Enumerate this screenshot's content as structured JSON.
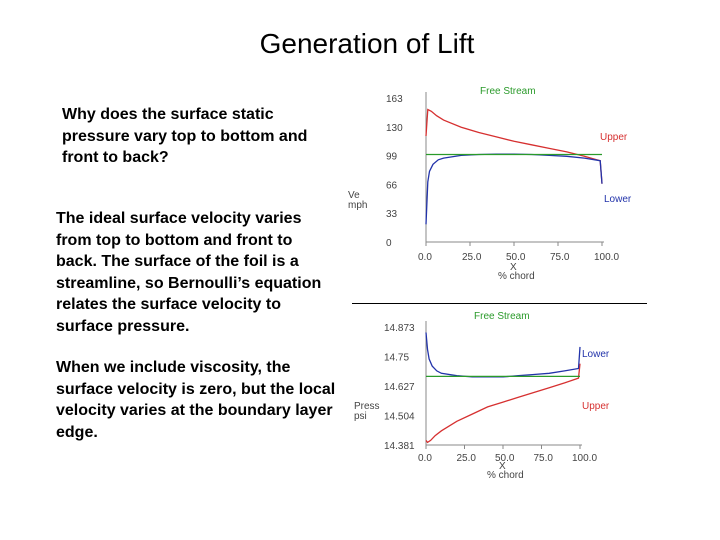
{
  "title": "Generation of  Lift",
  "paragraphs": {
    "p1": "Why does the surface static pressure vary top to bottom and front to back?",
    "p2": "The ideal surface velocity varies from top to bottom and front to back. The surface of the foil is a streamline, so Bernoulli’s equation relates the surface velocity to surface pressure.",
    "p3": "When we include viscosity, the surface velocity is zero, but the local velocity varies at the boundary layer edge."
  },
  "colors": {
    "upper": "#d63030",
    "lower": "#2233aa",
    "free_stream": "#2a9a2a"
  },
  "chart_data": [
    {
      "type": "line",
      "title": "",
      "ylabel": "Ve\nmph",
      "xlabel": "X\n% chord",
      "y_ticks": [
        "163",
        "130",
        "99",
        "66",
        "33",
        "0"
      ],
      "x_ticks": [
        "0.0",
        "25.0",
        "50.0",
        "75.0",
        "100.0"
      ],
      "xlim": [
        0,
        100
      ],
      "ylim": [
        0,
        163
      ],
      "legend": {
        "free_stream": "Free Stream",
        "upper": "Upper",
        "lower": "Lower"
      },
      "series": [
        {
          "name": "Upper",
          "x": [
            0,
            1,
            3,
            6,
            10,
            20,
            30,
            40,
            50,
            60,
            70,
            80,
            90,
            99,
            100
          ],
          "y": [
            120,
            150,
            148,
            143,
            138,
            130,
            124,
            119,
            114,
            110,
            106,
            102,
            97,
            92,
            66
          ]
        },
        {
          "name": "Lower",
          "x": [
            0,
            1,
            2,
            4,
            7,
            10,
            20,
            30,
            40,
            50,
            60,
            70,
            80,
            90,
            99,
            100
          ],
          "y": [
            20,
            68,
            80,
            88,
            93,
            95,
            98,
            99,
            99.5,
            99.5,
            99,
            98,
            97,
            95,
            92,
            66
          ]
        },
        {
          "name": "Free Stream",
          "x": [
            0,
            100
          ],
          "y": [
            99,
            99
          ]
        }
      ]
    },
    {
      "type": "line",
      "title": "",
      "ylabel": "Press\npsi",
      "xlabel": "X\n% chord",
      "y_ticks": [
        "14.873",
        "14.75",
        "14.627",
        "14.504",
        "14.381"
      ],
      "x_ticks": [
        "0.0",
        "25.0",
        "50.0",
        "75.0",
        "100.0"
      ],
      "xlim": [
        0,
        100
      ],
      "ylim": [
        14.381,
        14.873
      ],
      "legend": {
        "free_stream": "Free Stream",
        "upper": "Upper",
        "lower": "Lower"
      },
      "series": [
        {
          "name": "Upper",
          "x": [
            0,
            1,
            3,
            6,
            10,
            20,
            30,
            40,
            50,
            60,
            70,
            80,
            90,
            99,
            100
          ],
          "y": [
            14.4,
            14.392,
            14.4,
            14.42,
            14.44,
            14.48,
            14.51,
            14.54,
            14.56,
            14.58,
            14.6,
            14.62,
            14.64,
            14.66,
            14.72
          ]
        },
        {
          "name": "Lower",
          "x": [
            0,
            1,
            2,
            4,
            7,
            10,
            20,
            30,
            40,
            50,
            60,
            70,
            80,
            90,
            99,
            100
          ],
          "y": [
            14.85,
            14.78,
            14.74,
            14.71,
            14.69,
            14.68,
            14.67,
            14.665,
            14.665,
            14.665,
            14.67,
            14.675,
            14.68,
            14.69,
            14.7,
            14.79
          ]
        },
        {
          "name": "Free Stream",
          "x": [
            0,
            100
          ],
          "y": [
            14.667,
            14.667
          ]
        }
      ]
    }
  ]
}
